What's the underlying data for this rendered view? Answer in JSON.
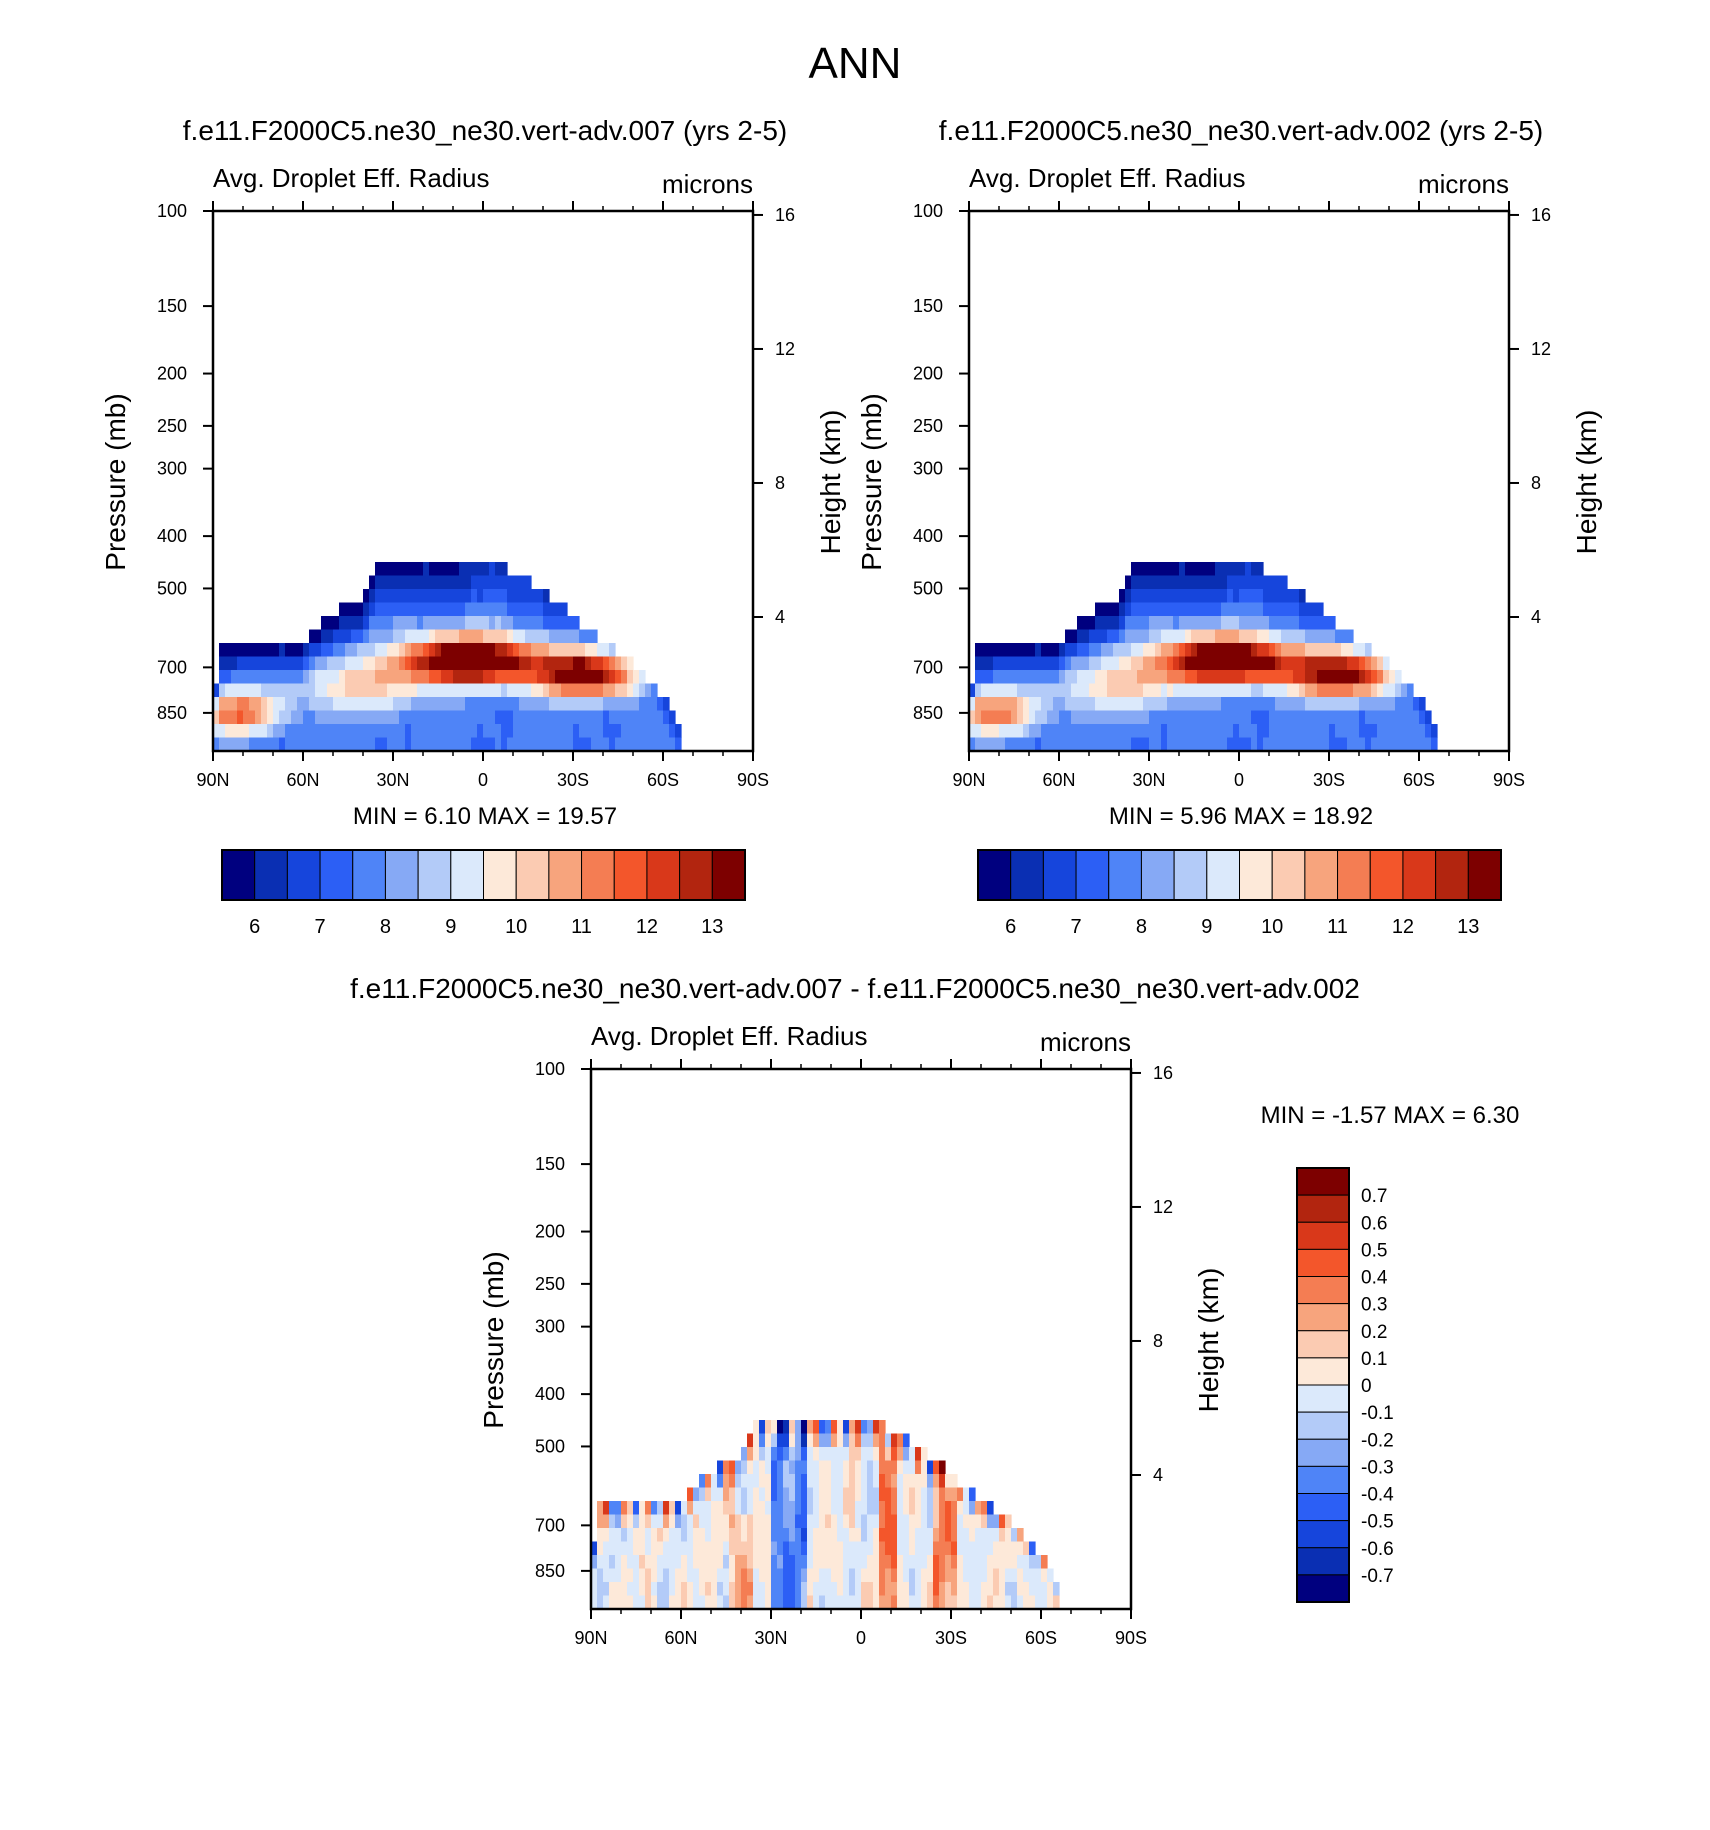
{
  "page_title": "ANN",
  "colors": {
    "abs": [
      "#00007f",
      "#0a2fb3",
      "#1645dc",
      "#2c5ff5",
      "#4f84f7",
      "#86a9f5",
      "#b3cbf8",
      "#dbe9fb",
      "#fde9d9",
      "#fbcbb2",
      "#f7a47d",
      "#f47d53",
      "#f3562b",
      "#d9381a",
      "#b2250f",
      "#7d0000"
    ],
    "diff": [
      "#00007f",
      "#0a2fb3",
      "#1645dc",
      "#2c5ff5",
      "#4f84f7",
      "#86a9f5",
      "#b3cbf8",
      "#dbe9fb",
      "#fde9d9",
      "#fbcbb2",
      "#f7a47d",
      "#f47d53",
      "#f3562b",
      "#d9381a",
      "#b2250f",
      "#7d0000"
    ]
  },
  "chart_data": [
    {
      "type": "heatmap",
      "id": "panel-1",
      "title": "f.e11.F2000C5.ne30_ne30.vert-adv.007 (yrs 2-5)",
      "variable": "Avg. Droplet Eff. Radius",
      "units": "microns",
      "ylabel": "Pressure (mb)",
      "y2label": "Height (km)",
      "x_ticks": [
        "90N",
        "60N",
        "30N",
        "0",
        "30S",
        "60S",
        "90S"
      ],
      "xlim": [
        90,
        -90
      ],
      "y_ticks": [
        100,
        150,
        200,
        250,
        300,
        400,
        500,
        700,
        850
      ],
      "ylim": [
        100,
        1000
      ],
      "y2_ticks": [
        16,
        12,
        8,
        4
      ],
      "stats_text": "MIN =   6.10  MAX =  19.57",
      "min": 6.1,
      "max": 19.57,
      "colorbar": {
        "orientation": "horizontal",
        "levels": [
          5.5,
          6,
          6.5,
          7,
          7.5,
          8,
          8.5,
          9,
          9.5,
          10,
          10.5,
          11,
          11.5,
          12,
          12.5,
          13
        ],
        "labels": [
          "6",
          "7",
          "8",
          "9",
          "10",
          "11",
          "12",
          "13"
        ]
      },
      "field": {
        "top_profile": [
          [
            90,
            900
          ],
          [
            88,
            640
          ],
          [
            60,
            630
          ],
          [
            52,
            560
          ],
          [
            42,
            530
          ],
          [
            38,
            500
          ],
          [
            36,
            455
          ],
          [
            -5,
            450
          ],
          [
            -20,
            500
          ],
          [
            -38,
            610
          ],
          [
            -52,
            700
          ],
          [
            -62,
            810
          ],
          [
            -66,
            900
          ]
        ],
        "blobs": [
          {
            "lat": 5,
            "p": 680,
            "lat_w": 22,
            "p_w": 70,
            "amp": 7.5
          },
          {
            "lat": -35,
            "p": 720,
            "lat_w": 20,
            "p_w": 75,
            "amp": 6.0
          },
          {
            "lat": 82,
            "p": 850,
            "lat_w": 14,
            "p_w": 80,
            "amp": 4.0
          },
          {
            "lat": 40,
            "p": 760,
            "lat_w": 22,
            "p_w": 90,
            "amp": 2.5
          }
        ],
        "base": 7.6,
        "cold_top": -1.6,
        "cold_center_lat": 55
      }
    },
    {
      "type": "heatmap",
      "id": "panel-2",
      "title": "f.e11.F2000C5.ne30_ne30.vert-adv.002 (yrs 2-5)",
      "variable": "Avg. Droplet Eff. Radius",
      "units": "microns",
      "ylabel": "Pressure (mb)",
      "y2label": "Height (km)",
      "x_ticks": [
        "90N",
        "60N",
        "30N",
        "0",
        "30S",
        "60S",
        "90S"
      ],
      "xlim": [
        90,
        -90
      ],
      "y_ticks": [
        100,
        150,
        200,
        250,
        300,
        400,
        500,
        700,
        850
      ],
      "ylim": [
        100,
        1000
      ],
      "y2_ticks": [
        16,
        12,
        8,
        4
      ],
      "stats_text": "MIN =   5.96  MAX =  18.92",
      "min": 5.96,
      "max": 18.92,
      "colorbar": {
        "orientation": "horizontal",
        "levels": [
          5.5,
          6,
          6.5,
          7,
          7.5,
          8,
          8.5,
          9,
          9.5,
          10,
          10.5,
          11,
          11.5,
          12,
          12.5,
          13
        ],
        "labels": [
          "6",
          "7",
          "8",
          "9",
          "10",
          "11",
          "12",
          "13"
        ]
      },
      "field": {
        "top_profile": [
          [
            90,
            900
          ],
          [
            88,
            640
          ],
          [
            60,
            630
          ],
          [
            52,
            560
          ],
          [
            42,
            530
          ],
          [
            38,
            500
          ],
          [
            36,
            455
          ],
          [
            -5,
            450
          ],
          [
            -20,
            500
          ],
          [
            -38,
            610
          ],
          [
            -52,
            700
          ],
          [
            -62,
            810
          ],
          [
            -66,
            900
          ]
        ],
        "blobs": [
          {
            "lat": 5,
            "p": 680,
            "lat_w": 22,
            "p_w": 70,
            "amp": 7.3
          },
          {
            "lat": -35,
            "p": 720,
            "lat_w": 20,
            "p_w": 75,
            "amp": 5.9
          },
          {
            "lat": 82,
            "p": 850,
            "lat_w": 14,
            "p_w": 80,
            "amp": 3.9
          },
          {
            "lat": 40,
            "p": 760,
            "lat_w": 22,
            "p_w": 90,
            "amp": 2.4
          }
        ],
        "base": 7.6,
        "cold_top": -1.6,
        "cold_center_lat": 55
      }
    },
    {
      "type": "heatmap",
      "id": "panel-3",
      "title": "f.e11.F2000C5.ne30_ne30.vert-adv.007 - f.e11.F2000C5.ne30_ne30.vert-adv.002",
      "variable": "Avg. Droplet Eff. Radius",
      "units": "microns",
      "ylabel": "Pressure (mb)",
      "y2label": "Height (km)",
      "x_ticks": [
        "90N",
        "60N",
        "30N",
        "0",
        "30S",
        "60S",
        "90S"
      ],
      "xlim": [
        90,
        -90
      ],
      "y_ticks": [
        100,
        150,
        200,
        250,
        300,
        400,
        500,
        700,
        850
      ],
      "ylim": [
        100,
        1000
      ],
      "y2_ticks": [
        16,
        12,
        8,
        4
      ],
      "stats_text": "MIN =  -1.57  MAX =   6.30",
      "min": -1.57,
      "max": 6.3,
      "colorbar": {
        "orientation": "vertical",
        "levels": [
          -0.8,
          -0.7,
          -0.6,
          -0.5,
          -0.4,
          -0.3,
          -0.2,
          -0.1,
          0,
          0.1,
          0.2,
          0.3,
          0.4,
          0.5,
          0.6,
          0.7
        ],
        "labels": [
          "0.7",
          "0.6",
          "0.5",
          "0.4",
          "0.3",
          "0.2",
          "0.1",
          "0",
          "-0.1",
          "-0.2",
          "-0.3",
          "-0.4",
          "-0.5",
          "-0.6",
          "-0.7"
        ]
      },
      "field": {
        "top_profile": [
          [
            90,
            900
          ],
          [
            88,
            640
          ],
          [
            60,
            630
          ],
          [
            52,
            560
          ],
          [
            42,
            530
          ],
          [
            38,
            500
          ],
          [
            36,
            455
          ],
          [
            -5,
            450
          ],
          [
            -20,
            500
          ],
          [
            -38,
            610
          ],
          [
            -52,
            700
          ],
          [
            -62,
            810
          ],
          [
            -66,
            900
          ]
        ]
      }
    }
  ]
}
